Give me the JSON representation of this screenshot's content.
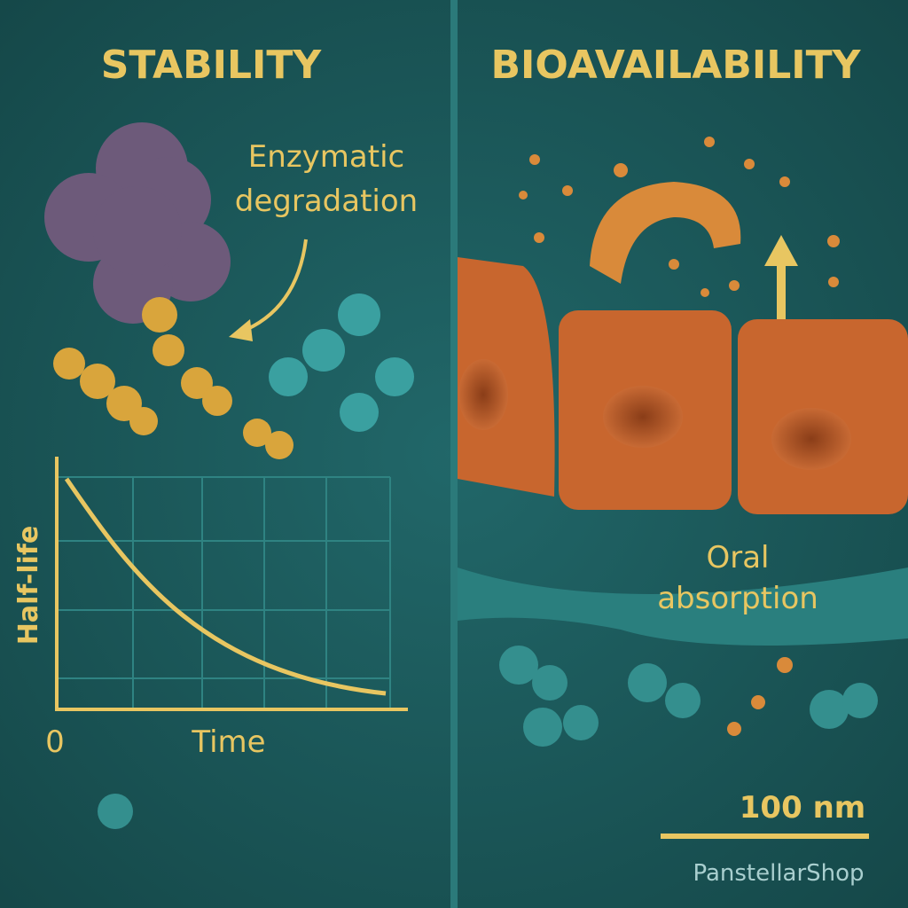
{
  "left": {
    "title": "STABILITY",
    "annotation": [
      "Enzymatic",
      "degradation"
    ],
    "graph": {
      "y_label": "Half-life",
      "x_label": "Time",
      "origin": "0"
    }
  },
  "right": {
    "title": "BIOAVAILABILITY",
    "annotation": [
      "Oral",
      "absorption"
    ],
    "scale_bar": "100 nm"
  },
  "watermark": "PanstellarShop"
}
